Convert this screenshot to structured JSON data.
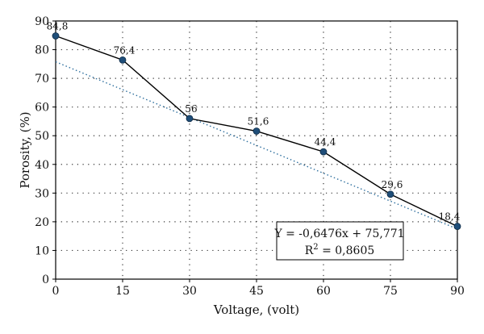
{
  "chart_data": {
    "type": "line",
    "xlabel": "Voltage, (volt)",
    "ylabel": "Porosity, (%)",
    "xlim": [
      0,
      90
    ],
    "ylim": [
      0,
      90
    ],
    "x_ticks": [
      0,
      15,
      30,
      45,
      60,
      75,
      90
    ],
    "y_ticks": [
      0,
      10,
      20,
      30,
      40,
      50,
      60,
      70,
      80,
      90
    ],
    "grid": "dotted",
    "x": [
      0,
      15,
      30,
      45,
      60,
      75,
      90
    ],
    "series": [
      {
        "values": [
          84.8,
          76.4,
          56,
          51.6,
          44.4,
          29.6,
          18.4
        ],
        "labels": [
          "84,8",
          "76,4",
          "56",
          "51,6",
          "44,4",
          "29,6",
          "18,4"
        ],
        "color": "#1f4e79",
        "line_color": "#000000"
      }
    ],
    "trendline": {
      "slope": -0.6476,
      "intercept": 75.771,
      "color": "#2e6f9e",
      "style": "dotted",
      "equation": "Y = -0,6476x + 75,771",
      "r_squared_prefix": "R",
      "r_squared_exp": "2",
      "r_squared_value": " = 0,8605"
    }
  }
}
